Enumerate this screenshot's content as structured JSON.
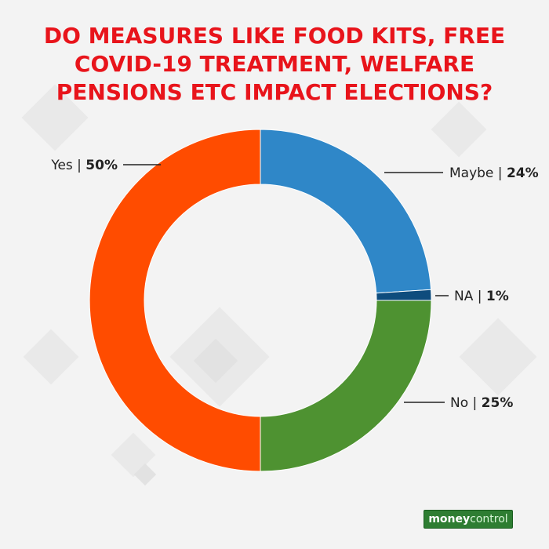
{
  "title_lines": [
    "DO MEASURES LIKE FOOD KITS, FREE",
    "COVID-19 TREATMENT, WELFARE",
    "PENSIONS ETC IMPACT ELECTIONS?"
  ],
  "logo": {
    "part1": "money",
    "part2": "control"
  },
  "colors": {
    "title": "#e8141b",
    "maybe": "#2f87c8",
    "na": "#0e4c7d",
    "no": "#4e9231",
    "yes": "#ff4c00"
  },
  "chart_data": {
    "type": "pie",
    "variant": "donut",
    "slices": [
      {
        "name": "Maybe",
        "value": 24,
        "label": "Maybe | 24%",
        "color": "#2f87c8",
        "label_side": "right"
      },
      {
        "name": "NA",
        "value": 1,
        "label": "NA | 1%",
        "color": "#0e4c7d",
        "label_side": "right"
      },
      {
        "name": "No",
        "value": 25,
        "label": "No | 25%",
        "color": "#4e9231",
        "label_side": "right"
      },
      {
        "name": "Yes",
        "value": 50,
        "label": "Yes | 50%",
        "color": "#ff4c00",
        "label_side": "left"
      }
    ]
  }
}
